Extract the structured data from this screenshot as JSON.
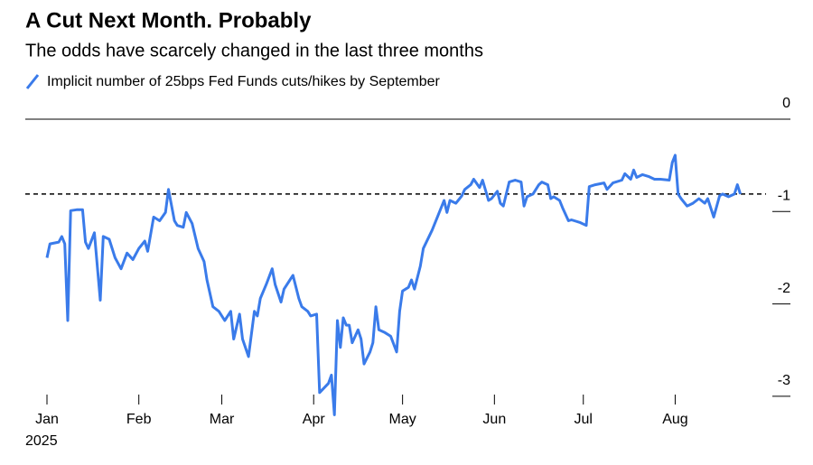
{
  "chart_data": {
    "type": "line",
    "title": "A Cut Next Month. Probably",
    "subtitle": "The odds have scarcely changed in the last three months",
    "year_label": "2025",
    "series": [
      {
        "name": "Implicit number of 25bps Fed Funds cuts/hikes by September",
        "color": "#3a7bea",
        "x": [
          1,
          2,
          5,
          6,
          7,
          8,
          9,
          11,
          13,
          14,
          15,
          17,
          19,
          20,
          22,
          24,
          26,
          28,
          30,
          32,
          34,
          35,
          37,
          39,
          41,
          42,
          44,
          45,
          47,
          48,
          50,
          52,
          54,
          55,
          57,
          59,
          61,
          63,
          64,
          66,
          67,
          69,
          71,
          72,
          73,
          75,
          77,
          78,
          80,
          81,
          83,
          84,
          86,
          87,
          89,
          90,
          92,
          93,
          96,
          97,
          98,
          99,
          100,
          101,
          102,
          103,
          104,
          106,
          107,
          108,
          110,
          111,
          112,
          113,
          115,
          117,
          119,
          120,
          121,
          123,
          124,
          125,
          127,
          128,
          131,
          133,
          135,
          136,
          137,
          139,
          141,
          142,
          144,
          145,
          147,
          148,
          150,
          151,
          153,
          154,
          155,
          157,
          159,
          161,
          162,
          163,
          165,
          167,
          168,
          170,
          171,
          172,
          174,
          175,
          177,
          178,
          179,
          181,
          183,
          184,
          186,
          189,
          190,
          192,
          195,
          196,
          198,
          199,
          200,
          202,
          204,
          206,
          208,
          211,
          212,
          213,
          214,
          215,
          217,
          219,
          221,
          223,
          224,
          226,
          228,
          229,
          231,
          233,
          234,
          235
        ],
        "values": [
          -1.5,
          -1.35,
          -1.33,
          -1.27,
          -1.35,
          -2.18,
          -0.99,
          -0.98,
          -0.98,
          -1.33,
          -1.4,
          -1.23,
          -1.96,
          -1.27,
          -1.3,
          -1.5,
          -1.62,
          -1.45,
          -1.52,
          -1.4,
          -1.32,
          -1.43,
          -1.06,
          -1.1,
          -1.01,
          -0.76,
          -1.1,
          -1.15,
          -1.17,
          -1.01,
          -1.13,
          -1.4,
          -1.54,
          -1.74,
          -2.03,
          -2.08,
          -2.18,
          -2.08,
          -2.38,
          -2.11,
          -2.38,
          -2.57,
          -2.08,
          -2.13,
          -1.94,
          -1.79,
          -1.62,
          -1.79,
          -1.98,
          -1.84,
          -1.74,
          -1.69,
          -1.94,
          -2.03,
          -2.08,
          -2.13,
          -2.11,
          -2.96,
          -2.86,
          -2.77,
          -3.2,
          -2.18,
          -2.47,
          -2.15,
          -2.23,
          -2.23,
          -2.42,
          -2.28,
          -2.38,
          -2.65,
          -2.52,
          -2.42,
          -2.03,
          -2.28,
          -2.31,
          -2.35,
          -2.52,
          -2.08,
          -1.86,
          -1.82,
          -1.74,
          -1.84,
          -1.59,
          -1.4,
          -1.2,
          -1.04,
          -0.88,
          -1.01,
          -0.88,
          -0.91,
          -0.83,
          -0.76,
          -0.71,
          -0.65,
          -0.74,
          -0.66,
          -0.88,
          -0.86,
          -0.78,
          -0.91,
          -0.94,
          -0.68,
          -0.66,
          -0.68,
          -0.94,
          -0.84,
          -0.81,
          -0.71,
          -0.68,
          -0.71,
          -0.86,
          -0.84,
          -0.88,
          -0.96,
          -1.1,
          -1.09,
          -1.1,
          -1.12,
          -1.15,
          -0.73,
          -0.71,
          -0.69,
          -0.76,
          -0.69,
          -0.66,
          -0.59,
          -0.65,
          -0.55,
          -0.63,
          -0.6,
          -0.62,
          -0.65,
          -0.65,
          -0.66,
          -0.47,
          -0.39,
          -0.81,
          -0.86,
          -0.94,
          -0.91,
          -0.86,
          -0.91,
          -0.86,
          -1.06,
          -0.83,
          -0.81,
          -0.84,
          -0.81,
          -0.71,
          -0.81
        ]
      }
    ],
    "reference_line": -0.81,
    "xlim": [
      1,
      240
    ],
    "xticks": [
      {
        "value": 1,
        "label": "Jan"
      },
      {
        "value": 32,
        "label": "Feb"
      },
      {
        "value": 60,
        "label": "Mar"
      },
      {
        "value": 91,
        "label": "Apr"
      },
      {
        "value": 121,
        "label": "May"
      },
      {
        "value": 152,
        "label": "Jun"
      },
      {
        "value": 182,
        "label": "Jul"
      },
      {
        "value": 213,
        "label": "Aug"
      }
    ],
    "ylim": [
      -3.25,
      0
    ],
    "yticks": [
      0,
      -1,
      -2,
      -3
    ]
  }
}
